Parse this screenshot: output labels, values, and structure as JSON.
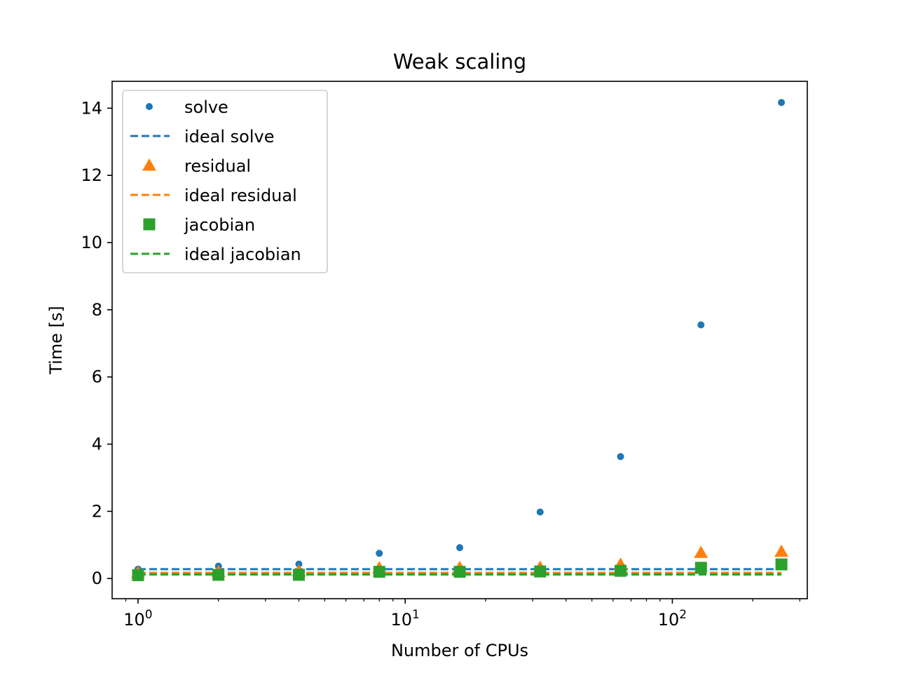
{
  "chart_data": {
    "type": "scatter",
    "title": "Weak scaling",
    "xlabel": "Number of CPUs",
    "ylabel": "Time [s]",
    "xscale": "log",
    "xlim": [
      0.8,
      320
    ],
    "ylim": [
      -0.6,
      14.8
    ],
    "x": [
      1,
      2,
      4,
      8,
      16,
      32,
      64,
      128,
      256
    ],
    "yticks": [
      0,
      2,
      4,
      6,
      8,
      10,
      12,
      14
    ],
    "xticks": [
      {
        "value": 1,
        "base": "10",
        "exp": "0"
      },
      {
        "value": 10,
        "base": "10",
        "exp": "1"
      },
      {
        "value": 100,
        "base": "10",
        "exp": "2"
      }
    ],
    "legend_position": "upper left",
    "grid": false,
    "series": [
      {
        "name": "solve",
        "kind": "points",
        "marker": "circle",
        "color": "#1f77b4",
        "values": [
          0.28,
          0.37,
          0.43,
          0.75,
          0.92,
          1.98,
          3.63,
          7.55,
          14.17
        ]
      },
      {
        "name": "ideal solve",
        "kind": "line",
        "style": "dashed",
        "color": "#1f77b4",
        "values": [
          0.28,
          0.28,
          0.28,
          0.28,
          0.28,
          0.28,
          0.28,
          0.28,
          0.28
        ]
      },
      {
        "name": "residual",
        "kind": "points",
        "marker": "triangle",
        "color": "#ff7f0e",
        "values": [
          0.17,
          0.2,
          0.22,
          0.31,
          0.32,
          0.33,
          0.42,
          0.77,
          0.8
        ]
      },
      {
        "name": "ideal residual",
        "kind": "line",
        "style": "dashed",
        "color": "#ff7f0e",
        "values": [
          0.17,
          0.17,
          0.17,
          0.17,
          0.17,
          0.17,
          0.17,
          0.17,
          0.17
        ]
      },
      {
        "name": "jacobian",
        "kind": "points",
        "marker": "square",
        "color": "#2ca02c",
        "values": [
          0.1,
          0.11,
          0.11,
          0.2,
          0.2,
          0.21,
          0.23,
          0.32,
          0.42
        ]
      },
      {
        "name": "ideal jacobian",
        "kind": "line",
        "style": "dashed",
        "color": "#2ca02c",
        "values": [
          0.12,
          0.12,
          0.12,
          0.12,
          0.12,
          0.12,
          0.12,
          0.12,
          0.12
        ]
      }
    ]
  }
}
